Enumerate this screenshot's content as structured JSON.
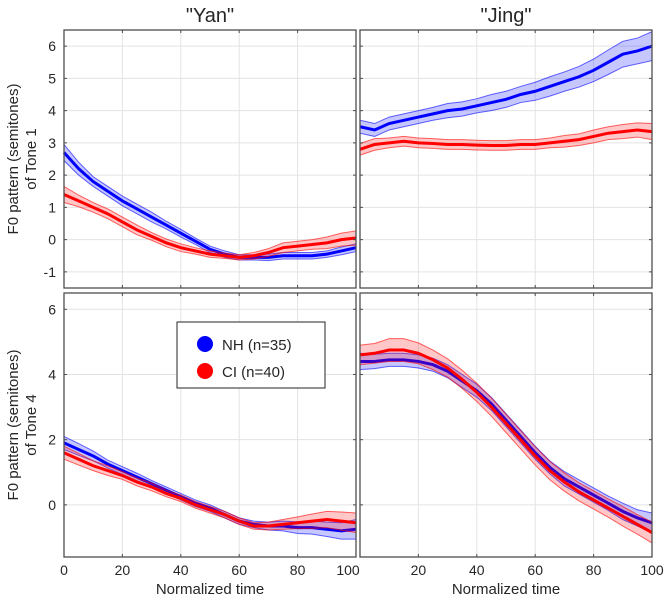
{
  "chart_data": {
    "type": "line",
    "x": [
      0,
      5,
      10,
      15,
      20,
      25,
      30,
      35,
      40,
      45,
      50,
      55,
      60,
      65,
      70,
      75,
      80,
      85,
      90,
      95,
      100
    ],
    "xlim": [
      0,
      100
    ],
    "xticks": [
      0,
      20,
      40,
      60,
      80,
      100
    ],
    "xlabel": "Normalized time",
    "columns": [
      "\"Yan\"",
      "\"Jing\""
    ],
    "legend": {
      "placement": "inside-top-left of bottom-left panel",
      "entries": [
        "NH (n=35)",
        "CI (n=40)"
      ]
    },
    "colors": {
      "NH": "#0000ff",
      "CI": "#ff0000"
    },
    "grid": true,
    "panels": [
      {
        "row": 0,
        "col": 0,
        "ylabel": "F0 pattern (semitones)\nof Tone 1",
        "ylim": [
          -1.5,
          6.5
        ],
        "yticks": [
          -1,
          0,
          1,
          2,
          3,
          4,
          5,
          6
        ],
        "series": [
          {
            "name": "NH",
            "mean": [
              2.7,
              2.2,
              1.8,
              1.5,
              1.2,
              0.95,
              0.7,
              0.45,
              0.2,
              -0.05,
              -0.3,
              -0.45,
              -0.55,
              -0.55,
              -0.55,
              -0.5,
              -0.5,
              -0.5,
              -0.45,
              -0.35,
              -0.25
            ],
            "band": [
              0.25,
              0.2,
              0.15,
              0.15,
              0.15,
              0.15,
              0.15,
              0.12,
              0.12,
              0.1,
              0.1,
              0.1,
              0.08,
              0.08,
              0.1,
              0.1,
              0.1,
              0.1,
              0.1,
              0.12,
              0.12
            ]
          },
          {
            "name": "CI",
            "mean": [
              1.4,
              1.2,
              1.0,
              0.8,
              0.55,
              0.3,
              0.1,
              -0.1,
              -0.25,
              -0.35,
              -0.45,
              -0.5,
              -0.55,
              -0.5,
              -0.4,
              -0.25,
              -0.2,
              -0.15,
              -0.1,
              0.0,
              0.05
            ],
            "band": [
              0.25,
              0.18,
              0.15,
              0.15,
              0.15,
              0.15,
              0.12,
              0.12,
              0.12,
              0.1,
              0.1,
              0.08,
              0.08,
              0.1,
              0.12,
              0.15,
              0.15,
              0.15,
              0.18,
              0.2,
              0.22
            ]
          }
        ]
      },
      {
        "row": 0,
        "col": 1,
        "ylabel": "",
        "ylim": [
          -1.5,
          6.5
        ],
        "yticks": [
          -1,
          0,
          1,
          2,
          3,
          4,
          5,
          6
        ],
        "series": [
          {
            "name": "NH",
            "mean": [
              3.5,
              3.4,
              3.6,
              3.7,
              3.8,
              3.9,
              4.0,
              4.05,
              4.15,
              4.25,
              4.35,
              4.5,
              4.6,
              4.75,
              4.9,
              5.05,
              5.25,
              5.5,
              5.75,
              5.85,
              6.0
            ],
            "band": [
              0.2,
              0.2,
              0.2,
              0.2,
              0.2,
              0.2,
              0.22,
              0.22,
              0.22,
              0.25,
              0.25,
              0.25,
              0.28,
              0.3,
              0.3,
              0.32,
              0.35,
              0.38,
              0.4,
              0.4,
              0.45
            ]
          },
          {
            "name": "CI",
            "mean": [
              2.8,
              2.95,
              3.0,
              3.05,
              3.0,
              2.98,
              2.95,
              2.95,
              2.93,
              2.92,
              2.92,
              2.95,
              2.95,
              3.0,
              3.05,
              3.1,
              3.2,
              3.3,
              3.35,
              3.4,
              3.35
            ],
            "band": [
              0.18,
              0.18,
              0.15,
              0.15,
              0.15,
              0.15,
              0.15,
              0.15,
              0.15,
              0.15,
              0.15,
              0.15,
              0.15,
              0.15,
              0.18,
              0.18,
              0.2,
              0.2,
              0.22,
              0.22,
              0.25
            ]
          }
        ]
      },
      {
        "row": 1,
        "col": 0,
        "ylabel": "F0 pattern (semitones)\nof Tone 4",
        "ylim": [
          -1.6,
          6.5
        ],
        "yticks": [
          0,
          2,
          4,
          6
        ],
        "series": [
          {
            "name": "NH",
            "mean": [
              1.9,
              1.7,
              1.5,
              1.25,
              1.05,
              0.85,
              0.65,
              0.45,
              0.25,
              0.05,
              -0.1,
              -0.3,
              -0.5,
              -0.6,
              -0.65,
              -0.65,
              -0.7,
              -0.7,
              -0.75,
              -0.8,
              -0.75
            ],
            "band": [
              0.2,
              0.18,
              0.15,
              0.12,
              0.12,
              0.12,
              0.1,
              0.1,
              0.1,
              0.1,
              0.1,
              0.1,
              0.1,
              0.1,
              0.12,
              0.15,
              0.18,
              0.2,
              0.22,
              0.25,
              0.3
            ]
          },
          {
            "name": "CI",
            "mean": [
              1.6,
              1.4,
              1.2,
              1.05,
              0.9,
              0.7,
              0.55,
              0.35,
              0.2,
              0.0,
              -0.15,
              -0.3,
              -0.5,
              -0.65,
              -0.65,
              -0.6,
              -0.55,
              -0.5,
              -0.45,
              -0.5,
              -0.55
            ],
            "band": [
              0.2,
              0.18,
              0.15,
              0.15,
              0.12,
              0.12,
              0.12,
              0.1,
              0.1,
              0.1,
              0.1,
              0.1,
              0.1,
              0.1,
              0.12,
              0.15,
              0.18,
              0.22,
              0.25,
              0.28,
              0.3
            ]
          }
        ]
      },
      {
        "row": 1,
        "col": 1,
        "ylabel": "",
        "ylim": [
          -1.6,
          6.5
        ],
        "yticks": [
          0,
          2,
          4,
          6
        ],
        "series": [
          {
            "name": "NH",
            "mean": [
              4.4,
              4.4,
              4.45,
              4.45,
              4.4,
              4.3,
              4.1,
              3.8,
              3.5,
              3.1,
              2.6,
              2.1,
              1.6,
              1.15,
              0.8,
              0.55,
              0.3,
              0.05,
              -0.2,
              -0.4,
              -0.55
            ],
            "band": [
              0.25,
              0.22,
              0.2,
              0.2,
              0.2,
              0.2,
              0.2,
              0.2,
              0.2,
              0.2,
              0.2,
              0.2,
              0.2,
              0.2,
              0.22,
              0.22,
              0.22,
              0.22,
              0.25,
              0.25,
              0.3
            ]
          },
          {
            "name": "CI",
            "mean": [
              4.6,
              4.65,
              4.75,
              4.75,
              4.65,
              4.45,
              4.2,
              3.85,
              3.45,
              3.0,
              2.5,
              2.0,
              1.5,
              1.05,
              0.7,
              0.4,
              0.15,
              -0.1,
              -0.35,
              -0.6,
              -0.85
            ],
            "band": [
              0.3,
              0.3,
              0.35,
              0.35,
              0.32,
              0.3,
              0.28,
              0.28,
              0.28,
              0.28,
              0.28,
              0.28,
              0.28,
              0.28,
              0.28,
              0.28,
              0.28,
              0.28,
              0.3,
              0.3,
              0.32
            ]
          }
        ]
      }
    ]
  }
}
